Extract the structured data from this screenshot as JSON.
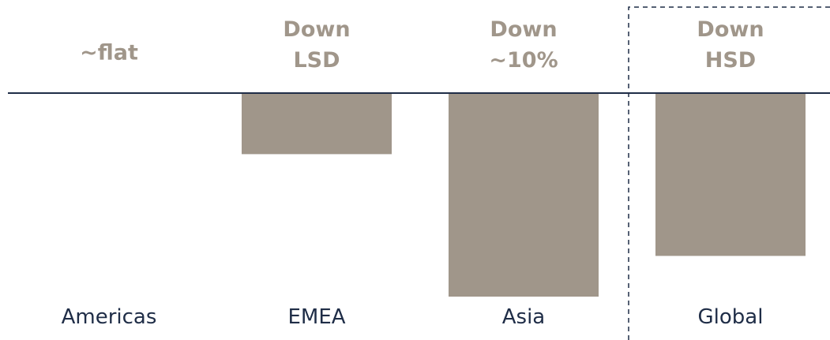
{
  "chart_data": {
    "type": "bar",
    "categories": [
      "Americas",
      "EMEA",
      "Asia",
      "Global"
    ],
    "values": [
      0,
      -3,
      -10,
      -8
    ],
    "data_labels": [
      [
        "~flat"
      ],
      [
        "Down",
        "LSD"
      ],
      [
        "Down",
        "~10%"
      ],
      [
        "Down",
        "HSD"
      ]
    ],
    "ylim": [
      -10,
      0
    ],
    "grid": false,
    "legend": "none",
    "highlighted_category": "Global",
    "colors": {
      "bar": "#a0968a",
      "baseline": "#1f2d47",
      "data_label": "#a0968a",
      "category_label": "#1f2d47",
      "divider": "#1f2d47"
    }
  }
}
